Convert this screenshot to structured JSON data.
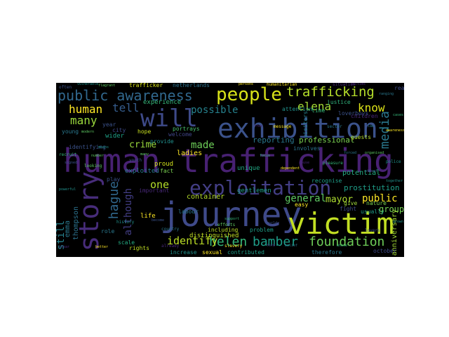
{
  "words": {
    "human_trafficking": {
      "text": "human trafficking",
      "color": "#482173"
    },
    "journey": {
      "text": "journey",
      "color": "#3f4a8a"
    },
    "victim": {
      "text": "victim",
      "color": "#c2df23"
    },
    "exhibition": {
      "text": "exhibition",
      "color": "#3b528b"
    },
    "story": {
      "text": "story",
      "color": "#472c7a"
    },
    "exploitation": {
      "text": "exploitation",
      "color": "#433e85"
    },
    "will": {
      "text": "will",
      "color": "#3e4a89"
    },
    "people": {
      "text": "people",
      "color": "#d8e219"
    },
    "trafficking": {
      "text": "trafficking",
      "color": "#b5de2b"
    },
    "public_awareness": {
      "text": "public awareness",
      "color": "#31688e"
    },
    "helen": {
      "text": "helen",
      "color": "#35b779"
    },
    "bamber": {
      "text": "bamber",
      "color": "#1f9e89"
    },
    "foundation": {
      "text": "foundation",
      "color": "#6ece58"
    },
    "media": {
      "text": "media",
      "color": "#2a788e"
    },
    "hague": {
      "text": "hague",
      "color": "#31688e"
    },
    "human": {
      "text": "human",
      "color": "#fde725"
    },
    "tell": {
      "text": "tell",
      "color": "#365d8d"
    },
    "know": {
      "text": "know",
      "color": "#dde318"
    },
    "elena": {
      "text": "elena",
      "color": "#a5db36"
    },
    "many": {
      "text": "many",
      "color": "#9bd93c"
    },
    "possible": {
      "text": "possible",
      "color": "#26828e"
    },
    "made": {
      "text": "made",
      "color": "#6ece58"
    },
    "crime": {
      "text": "crime",
      "color": "#9bd93c"
    },
    "one": {
      "text": "one",
      "color": "#b5de2b"
    },
    "identify": {
      "text": "identify",
      "color": "#bddf26"
    },
    "although": {
      "text": "although",
      "color": "#433e85"
    },
    "general": {
      "text": "general",
      "color": "#5ec962"
    },
    "mayor": {
      "text": "mayor",
      "color": "#addc30"
    },
    "public": {
      "text": "public",
      "color": "#fde725"
    },
    "still": {
      "text": "still",
      "color": "#26828e"
    },
    "group": {
      "text": "group",
      "color": "#75d054"
    },
    "prostitution": {
      "text": "prostitution",
      "color": "#1f9e89"
    },
    "professional": {
      "text": "professional",
      "color": "#7ad151"
    },
    "emma": {
      "text": "emma",
      "color": "#2a788e"
    },
    "thompson": {
      "text": "thompson",
      "color": "#2c728e"
    },
    "anniversary": {
      "text": "anniversary",
      "color": "#a2da37"
    },
    "experience": {
      "text": "experience",
      "color": "#35b779"
    },
    "reporting": {
      "text": "reporting",
      "color": "#2a788e"
    },
    "container": {
      "text": "container",
      "color": "#b5de2b"
    },
    "exploited": {
      "text": "exploited",
      "color": "#287c8e"
    },
    "potential": {
      "text": "potential",
      "color": "#25ac82"
    },
    "ladies": {
      "text": "ladies",
      "color": "#fde725"
    },
    "gentlemen": {
      "text": "gentlemen",
      "color": "#1fa187"
    },
    "proud": {
      "text": "proud",
      "color": "#d2e21b"
    },
    "unique": {
      "text": "unique",
      "color": "#22a884"
    },
    "wider": {
      "text": "wider",
      "color": "#1fa187"
    },
    "young": {
      "text": "young",
      "color": "#2a788e"
    },
    "year": {
      "text": "year",
      "color": "#3b528b"
    },
    "city": {
      "text": "city",
      "color": "#3e4a89"
    },
    "hope": {
      "text": "hope",
      "color": "#c8e020"
    },
    "welcome": {
      "text": "welcome",
      "color": "#404688"
    },
    "portrays": {
      "text": "portrays",
      "color": "#4ac16d"
    },
    "provide": {
      "text": "provide",
      "color": "#21908d"
    },
    "distinguished": {
      "text": "distinguished",
      "color": "#c2df23"
    },
    "sexual": {
      "text": "sexual",
      "color": "#fde725"
    },
    "contributed": {
      "text": "contributed",
      "color": "#1f9e89"
    },
    "increase": {
      "text": "increase",
      "color": "#21918c"
    },
    "rights": {
      "text": "rights",
      "color": "#c2df23"
    },
    "therefore": {
      "text": "therefore",
      "color": "#2a788e"
    },
    "including": {
      "text": "including",
      "color": "#bddf26"
    },
    "problem": {
      "text": "problem",
      "color": "#1f9e89"
    },
    "recognise": {
      "text": "recognise",
      "color": "#1f9e89"
    },
    "easy": {
      "text": "easy",
      "color": "#fde725"
    },
    "visitors": {
      "text": "visitors",
      "color": "#26828e"
    },
    "guests": {
      "text": "guests",
      "color": "#b5de2b"
    },
    "nature": {
      "text": "nature",
      "color": "#7ad151"
    },
    "give": {
      "text": "give",
      "color": "#a0da39"
    },
    "fight": {
      "text": "fight",
      "color": "#3e4a89"
    },
    "attention": {
      "text": "attention",
      "color": "#21918c"
    },
    "justice": {
      "text": "justice",
      "color": "#30b07a"
    },
    "time": {
      "text": "time",
      "color": "#35b779"
    },
    "netherlands": {
      "text": "netherlands",
      "color": "#2c728e"
    },
    "trafficker": {
      "text": "trafficker",
      "color": "#d8e219"
    },
    "children": {
      "text": "children",
      "color": "#482878"
    },
    "loverboys": {
      "text": "loverboys",
      "color": "#3b528b"
    },
    "reach": {
      "text": "reach",
      "color": "#3e4a89"
    },
    "involves": {
      "text": "involves",
      "color": "#2c728e"
    },
    "labour": {
      "text": "labour",
      "color": "#2a788e"
    },
    "play": {
      "text": "play",
      "color": "#3b528b"
    },
    "important": {
      "text": "important",
      "color": "#482878"
    },
    "role": {
      "text": "role",
      "color": "#2a788e"
    },
    "scale": {
      "text": "scale",
      "color": "#25ab82"
    },
    "october": {
      "text": "october",
      "color": "#3e4a89"
    },
    "fact": {
      "text": "fact",
      "color": "#7ad151"
    },
    "usually": {
      "text": "usually",
      "color": "#1f9e89"
    },
    "identifying": {
      "text": "identifying",
      "color": "#3b528b"
    },
    "life": {
      "text": "life",
      "color": "#fde725"
    }
  },
  "small_words": [
    "often",
    "vulnerable",
    "flagrant",
    "humanitarian",
    "victims",
    "ranging",
    "recruit",
    "signed",
    "powerful",
    "looking",
    "better",
    "clear",
    "country",
    "support",
    "world",
    "police",
    "organised",
    "awareness",
    "already",
    "belief",
    "whose",
    "lovers",
    "grown",
    "many",
    "message",
    "free",
    "forced",
    "pleasure",
    "street",
    "together",
    "efforts",
    "dependent",
    "abuse",
    "sector",
    "focus",
    "become",
    "history",
    "number",
    "persons",
    "situation",
    "law",
    "cases",
    "youth",
    "means",
    "modern",
    "slavery",
    "form"
  ],
  "colors": {
    "background": "#000000",
    "page": "#ffffff"
  }
}
